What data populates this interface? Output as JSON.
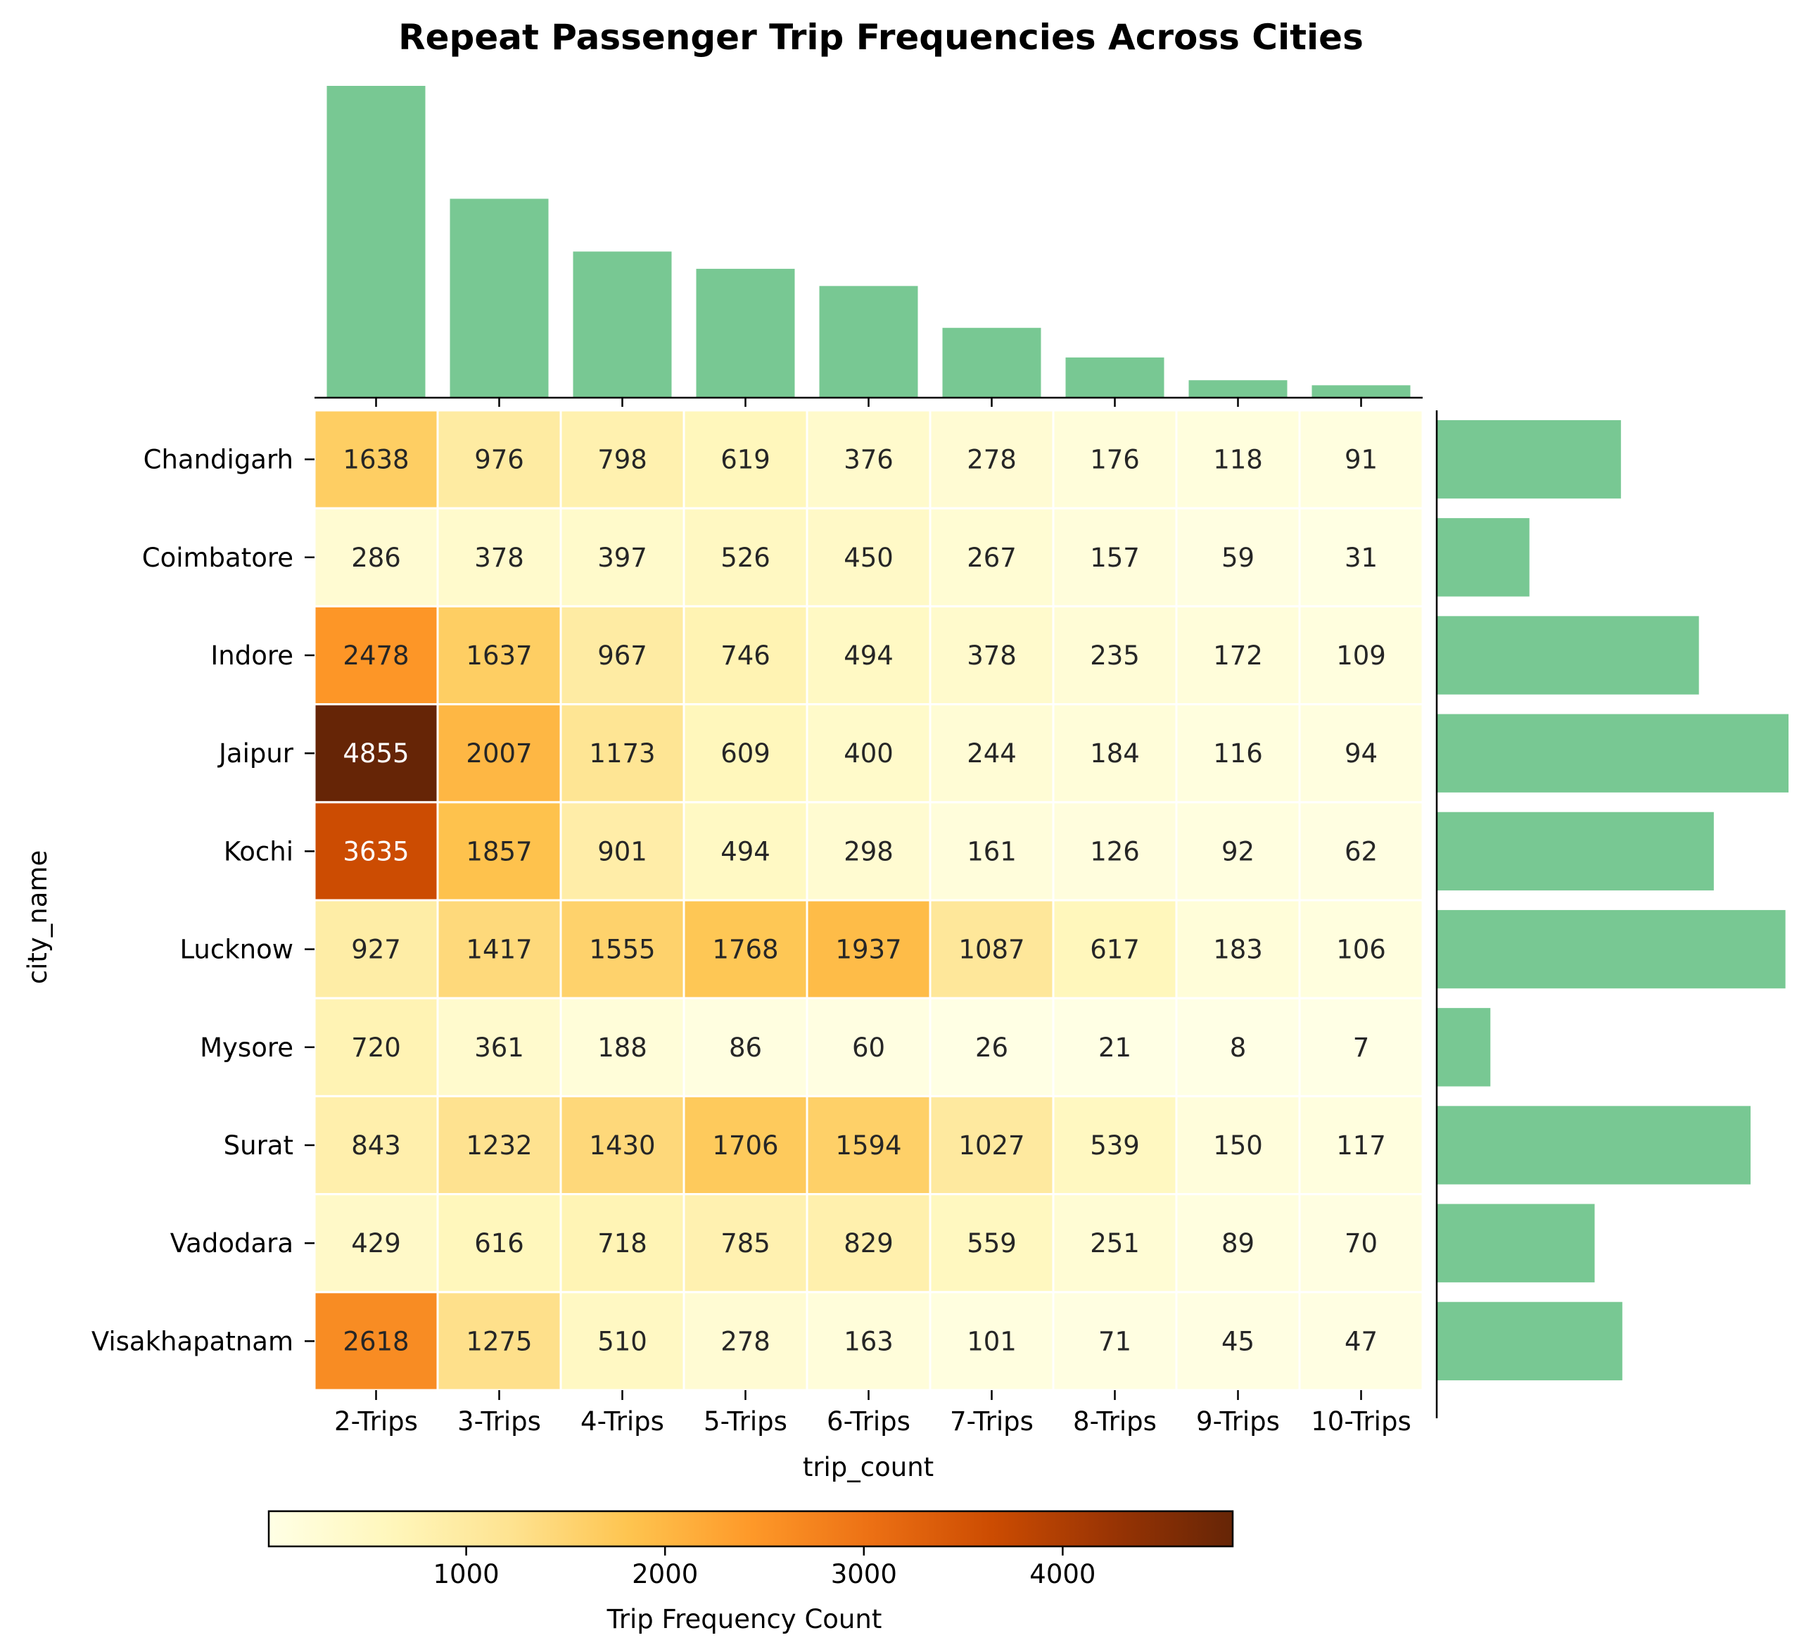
{
  "chart_data": {
    "type": "heatmap",
    "title": "Repeat Passenger Trip Frequencies Across Cities",
    "xlabel": "trip_count",
    "ylabel": "city_name",
    "colorbar_label": "Trip Frequency Count",
    "colorbar_ticks": [
      1000,
      2000,
      3000,
      4000
    ],
    "colorbar_range": [
      7,
      4855
    ],
    "colormap": [
      "#ffffe5",
      "#fff7bc",
      "#fee391",
      "#fec44f",
      "#fe9929",
      "#ec7014",
      "#cc4c02",
      "#993404",
      "#662506"
    ],
    "marginal_color": "#78c893",
    "categories": [
      "2-Trips",
      "3-Trips",
      "4-Trips",
      "5-Trips",
      "6-Trips",
      "7-Trips",
      "8-Trips",
      "9-Trips",
      "10-Trips"
    ],
    "rows": [
      "Chandigarh",
      "Coimbatore",
      "Indore",
      "Jaipur",
      "Kochi",
      "Lucknow",
      "Mysore",
      "Surat",
      "Vadodara",
      "Visakhapatnam"
    ],
    "values": [
      [
        1638,
        976,
        798,
        619,
        376,
        278,
        176,
        118,
        91
      ],
      [
        286,
        378,
        397,
        526,
        450,
        267,
        157,
        59,
        31
      ],
      [
        2478,
        1637,
        967,
        746,
        494,
        378,
        235,
        172,
        109
      ],
      [
        4855,
        2007,
        1173,
        609,
        400,
        244,
        184,
        116,
        94
      ],
      [
        3635,
        1857,
        901,
        494,
        298,
        161,
        126,
        92,
        62
      ],
      [
        927,
        1417,
        1555,
        1768,
        1937,
        1087,
        617,
        183,
        106
      ],
      [
        720,
        361,
        188,
        86,
        60,
        26,
        21,
        8,
        7
      ],
      [
        843,
        1232,
        1430,
        1706,
        1594,
        1027,
        539,
        150,
        117
      ],
      [
        429,
        616,
        718,
        785,
        829,
        559,
        251,
        89,
        70
      ],
      [
        2618,
        1275,
        510,
        278,
        163,
        101,
        71,
        45,
        47
      ]
    ]
  }
}
